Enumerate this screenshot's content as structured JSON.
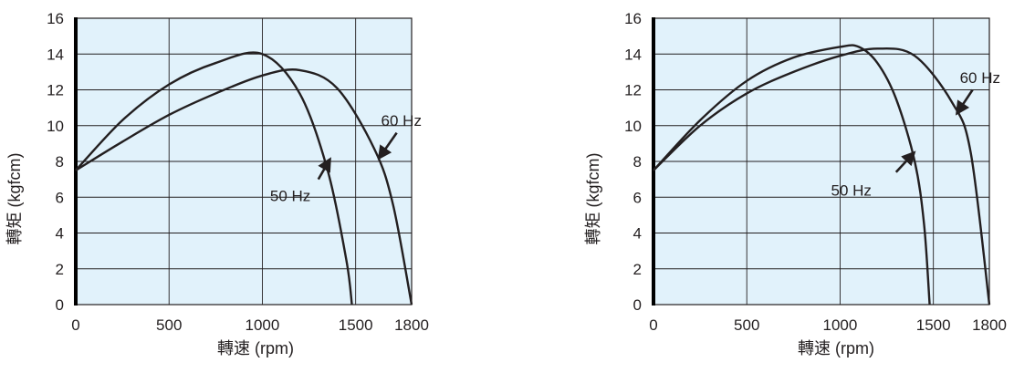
{
  "colors": {
    "plot_bg": "#e1f2fb",
    "grid": "#231f20",
    "curve": "#231f20",
    "text": "#231f20",
    "left_axis": "#000000"
  },
  "chart_data": [
    {
      "type": "line",
      "xlabel": "轉速 (rpm)",
      "ylabel": "轉矩 (kgfcm)",
      "xlim": [
        0,
        1800
      ],
      "ylim": [
        0,
        16
      ],
      "x_ticks": [
        "0",
        "500",
        "1000",
        "1500",
        "1800"
      ],
      "y_ticks": [
        "0",
        "2",
        "4",
        "6",
        "8",
        "10",
        "12",
        "14",
        "16"
      ],
      "grid": true,
      "series": [
        {
          "name": "50 Hz",
          "x": [
            0,
            250,
            500,
            750,
            1000,
            1200,
            1350,
            1450,
            1480
          ],
          "y": [
            7.5,
            10.3,
            12.3,
            13.5,
            14.0,
            11.8,
            7.5,
            2.5,
            0
          ]
        },
        {
          "name": "60 Hz",
          "x": [
            0,
            250,
            500,
            750,
            1000,
            1200,
            1400,
            1600,
            1700,
            1800
          ],
          "y": [
            7.5,
            9.1,
            10.6,
            11.8,
            12.8,
            13.1,
            12.1,
            8.7,
            5.6,
            0
          ]
        }
      ],
      "annotations": [
        {
          "text": "60 Hz",
          "x": 1745,
          "y": 10.3,
          "arrow_from": [
            1720,
            9.6
          ],
          "arrow_to": [
            1640,
            8.4
          ]
        },
        {
          "text": "50 Hz",
          "x": 1150,
          "y": 6.1,
          "arrow_from": [
            1300,
            7.0
          ],
          "arrow_to": [
            1350,
            7.9
          ]
        }
      ]
    },
    {
      "type": "line",
      "xlabel": "轉速 (rpm)",
      "ylabel": "轉矩 (kgfcm)",
      "xlim": [
        0,
        1800
      ],
      "ylim": [
        0,
        16
      ],
      "x_ticks": [
        "0",
        "500",
        "1000",
        "1500",
        "1800"
      ],
      "y_ticks": [
        "0",
        "2",
        "4",
        "6",
        "8",
        "10",
        "12",
        "14",
        "16"
      ],
      "grid": true,
      "series": [
        {
          "name": "50 Hz",
          "x": [
            0,
            250,
            500,
            750,
            1000,
            1100,
            1200,
            1300,
            1400,
            1450,
            1480
          ],
          "y": [
            7.5,
            10.3,
            12.5,
            13.8,
            14.4,
            14.4,
            13.5,
            11.5,
            8.0,
            4.5,
            0
          ]
        },
        {
          "name": "60 Hz",
          "x": [
            0,
            250,
            500,
            750,
            1000,
            1200,
            1400,
            1600,
            1700,
            1800
          ],
          "y": [
            7.5,
            10.0,
            11.8,
            13.0,
            13.9,
            14.3,
            13.9,
            11.3,
            8.5,
            0
          ]
        }
      ],
      "annotations": [
        {
          "text": "60 Hz",
          "x": 1750,
          "y": 12.7,
          "arrow_from": [
            1710,
            12.0
          ],
          "arrow_to": [
            1640,
            10.9
          ]
        },
        {
          "text": "50 Hz",
          "x": 1060,
          "y": 6.4,
          "arrow_from": [
            1300,
            7.4
          ],
          "arrow_to": [
            1380,
            8.3
          ]
        }
      ]
    }
  ]
}
